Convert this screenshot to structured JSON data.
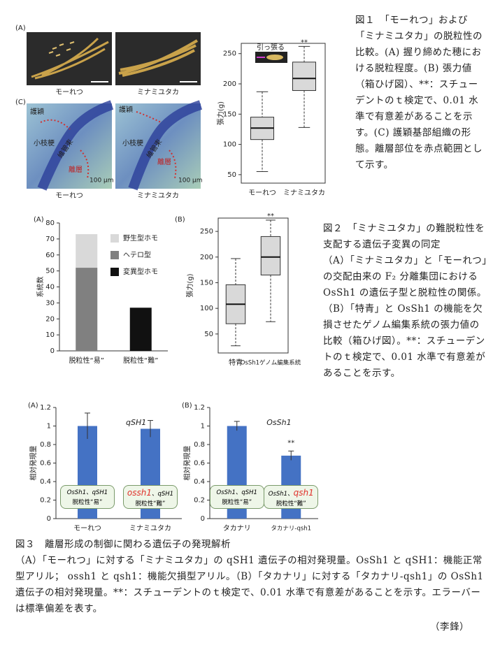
{
  "figure1": {
    "panel_a": "(A)",
    "panel_c": "(C)",
    "cultivars": [
      "モーれつ",
      "ミナミユタカ"
    ],
    "tissue_labels": [
      "護穎",
      "小枝梗",
      "維管束",
      "離層"
    ],
    "scale_bar": "100 μm",
    "caption": "図１　「モーれつ」および「ミナミユタカ」の脱粒性の比較。(A) 握り締めた穂における脱粒程度。(B) 張力値（箱ひげ図）、**：スチューデントのｔ検定で、0.01 水準で有意差があることを示す。(C) 護穎基部組織の形態。離層部位を赤点範囲として示す。"
  },
  "figure2": {
    "panel_a": "(A)",
    "panel_b": "(B)",
    "caption_title": "図２　「ミナミユタカ」の難脱粒性を支配する遺伝子変異の同定",
    "caption_body": "（A）「ミナミユタカ」と「モーれつ」の交配由来の F₂ 分離集団における OsSh1 の遺伝子型と脱粒性の関係。（B）「特青」と OsSh1 の機能を欠損させたゲノム編集系統の張力値の比較（箱ひげ図）。**：スチューデントのｔ検定で、0.01 水準で有意差があることを示す。"
  },
  "figure3": {
    "panel_a": "(A)",
    "panel_b": "(B)",
    "caption_title": "図３　離層形成の制御に関わる遺伝子の発現解析",
    "caption_body": "（A）「モーれつ」に対する「ミナミユタカ」の qSH1 遺伝子の相対発現量。OsSh1 と qSH1：機能正常型アリル； ossh1 と qsh1：機能欠損型アリル。（B）「タカナリ」に対する「タカナリ-qsh1」の OsSh1 遺伝子の相対発現量。**：スチューデントのｔ検定で、0.01 水準で有意差があることを示す。エラーバーは標準偏差を表す。"
  },
  "author": "（李鋒）",
  "chart_data": [
    {
      "type": "box",
      "panel": "(B)",
      "ylabel": "張力(g)",
      "inset_label": "引っ張る",
      "annotation": "**",
      "categories": [
        "モーれつ",
        "ミナミユタカ"
      ],
      "min": [
        55,
        128
      ],
      "q1": [
        108,
        189
      ],
      "median": [
        127,
        209
      ],
      "q3": [
        145,
        236
      ],
      "max": [
        187,
        262
      ],
      "ylim": [
        36,
        267
      ],
      "yticks": [
        50,
        100,
        150,
        200,
        250
      ],
      "color": "#d9d9d9"
    },
    {
      "type": "stacked_bar",
      "ylabel": "系統数",
      "categories": [
        "脱粒性“易”",
        "脱粒性“難”"
      ],
      "series": [
        {
          "name": "変異型ホモ",
          "color": "#111111",
          "values": [
            0,
            27
          ]
        },
        {
          "name": "ヘテロ型",
          "color": "#808080",
          "values": [
            52,
            0
          ]
        },
        {
          "name": "野生型ホモ",
          "color": "#d9d9d9",
          "values": [
            21,
            0
          ]
        }
      ],
      "ylim": [
        0,
        80
      ],
      "yticks": [
        0,
        10,
        20,
        30,
        40,
        50,
        60,
        70,
        80
      ]
    },
    {
      "type": "box",
      "ylabel": "張力(g)",
      "annotation": "**",
      "categories": [
        "特青",
        "OsSh1ゲノム編集系統"
      ],
      "min": [
        27,
        74
      ],
      "q1": [
        70,
        165
      ],
      "median": [
        108,
        200
      ],
      "q3": [
        146,
        240
      ],
      "max": [
        197,
        272
      ],
      "ylim": [
        13,
        276
      ],
      "yticks": [
        50,
        100,
        150,
        200,
        250
      ],
      "color": "#d9d9d9"
    },
    {
      "type": "bar",
      "ylabel": "相対発現量",
      "gene": "qSH1",
      "categories": [
        "モーれつ",
        "ミナミユタカ"
      ],
      "values": [
        1.0,
        0.97
      ],
      "errors": [
        0.14,
        0.09
      ],
      "color": "#4472c4",
      "ylim": [
        0,
        1.2
      ],
      "yticks": [
        0,
        0.2,
        0.4,
        0.6,
        0.8,
        1,
        1.2
      ],
      "genotype_boxes": [
        {
          "genotype": [
            {
              "text": "OsSh1、qSH1",
              "highlight": false
            }
          ],
          "phenotype": "脱粒性“易”"
        },
        {
          "genotype": [
            {
              "text": "ossh1",
              "highlight": true
            },
            {
              "text": "、qSH1",
              "highlight": false
            }
          ],
          "phenotype": "脱粒性“難”"
        }
      ]
    },
    {
      "type": "bar",
      "ylabel": "相対発現量",
      "gene": "OsSh1",
      "annotation": "**",
      "categories": [
        "タカナリ",
        "タカナリ-qsh1"
      ],
      "values": [
        1.0,
        0.68
      ],
      "errors": [
        0.05,
        0.05
      ],
      "color": "#4472c4",
      "ylim": [
        0,
        1.2
      ],
      "yticks": [
        0,
        0.2,
        0.4,
        0.6,
        0.8,
        1,
        1.2
      ],
      "genotype_boxes": [
        {
          "genotype": [
            {
              "text": "OsSh1、qSH1",
              "highlight": false
            }
          ],
          "phenotype": "脱粒性“易”"
        },
        {
          "genotype": [
            {
              "text": "OsSh1、",
              "highlight": false
            },
            {
              "text": "qsh1",
              "highlight": true
            }
          ],
          "phenotype": "脱粒性“難”"
        }
      ]
    }
  ]
}
